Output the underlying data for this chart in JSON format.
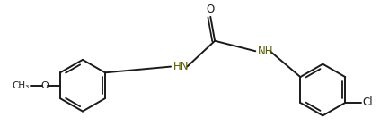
{
  "bg_color": "#ffffff",
  "line_color": "#1a1a1a",
  "text_color": "#1a1a1a",
  "nh_color": "#5a5a00",
  "figsize": [
    4.33,
    1.5
  ],
  "dpi": 100,
  "lw": 1.4,
  "ring_r": 30,
  "labels": {
    "O_carbonyl": "O",
    "NH_amide": "NH",
    "HN_amine": "HN",
    "O_methoxy": "O",
    "CH3": "CH₃",
    "Cl": "Cl"
  }
}
